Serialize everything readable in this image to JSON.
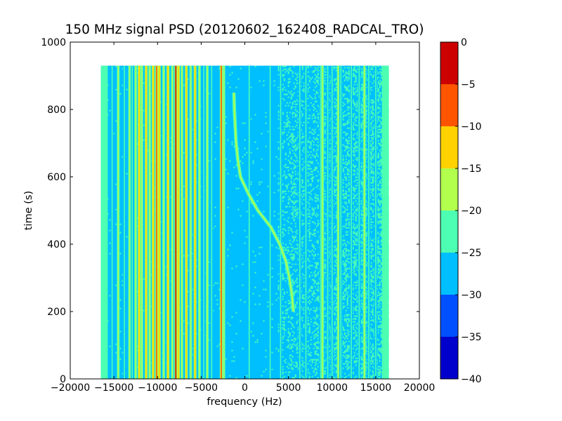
{
  "chart_data": {
    "type": "heatmap",
    "title": "150 MHz signal PSD (20120602_162408_RADCAL_TRO)",
    "xlabel": "frequency (Hz)",
    "ylabel": "time (s)",
    "xlim": [
      -20000,
      20000
    ],
    "ylim": [
      0,
      1000
    ],
    "x_ticks": [
      -20000,
      -15000,
      -10000,
      -5000,
      0,
      5000,
      10000,
      15000,
      20000
    ],
    "x_tick_labels": [
      "−20000",
      "−15000",
      "−10000",
      "−5000",
      "0",
      "5000",
      "10000",
      "15000",
      "20000"
    ],
    "y_ticks": [
      0,
      200,
      400,
      600,
      800,
      1000
    ],
    "y_tick_labels": [
      "0",
      "200",
      "400",
      "600",
      "800",
      "1000"
    ],
    "data_extent": {
      "freq_min": -16500,
      "freq_max": 16500,
      "time_min": 0,
      "time_max": 930
    },
    "background_level": -27.5,
    "noise_region": {
      "freq_from": 3800,
      "freq_to": 16500,
      "level": -22.5,
      "density": 0.32
    },
    "edge_bands": [
      {
        "freq_from": -16500,
        "freq_to": -15700,
        "level": -22.5
      },
      {
        "freq_from": 15700,
        "freq_to": 16500,
        "level": -22.5
      }
    ],
    "lines": [
      {
        "freq": -15200,
        "level": -22.5
      },
      {
        "freq": -14500,
        "level": -17.5
      },
      {
        "freq": -13800,
        "level": -22.5
      },
      {
        "freq": -13200,
        "level": -17.5
      },
      {
        "freq": -12900,
        "level": -22.5
      },
      {
        "freq": -12500,
        "level": -17.5
      },
      {
        "freq": -12100,
        "level": -12.5
      },
      {
        "freq": -11800,
        "level": -17.5
      },
      {
        "freq": -11300,
        "level": -12.5
      },
      {
        "freq": -10900,
        "level": -17.5
      },
      {
        "freq": -10500,
        "level": -12.5
      },
      {
        "freq": -10100,
        "level": -7.5
      },
      {
        "freq": -9800,
        "level": -12.5
      },
      {
        "freq": -9300,
        "level": -17.5
      },
      {
        "freq": -8800,
        "level": -12.5
      },
      {
        "freq": -8300,
        "level": -17.5
      },
      {
        "freq": -7900,
        "level": -2.5
      },
      {
        "freq": -7600,
        "level": -12.5
      },
      {
        "freq": -7200,
        "level": -17.5
      },
      {
        "freq": -6700,
        "level": -12.5
      },
      {
        "freq": -6200,
        "level": -17.5
      },
      {
        "freq": -5700,
        "level": -12.5
      },
      {
        "freq": -5200,
        "level": -17.5
      },
      {
        "freq": -4700,
        "level": -22.5
      },
      {
        "freq": -4300,
        "level": -17.5
      },
      {
        "freq": -3800,
        "level": -22.5
      },
      {
        "freq": -2700,
        "level": -7.5
      },
      {
        "freq": -2400,
        "level": -17.5
      },
      {
        "freq": 500,
        "level": -22.5
      },
      {
        "freq": 2900,
        "level": -22.5
      },
      {
        "freq": 4100,
        "level": -22.5
      },
      {
        "freq": 6300,
        "level": -22.5
      },
      {
        "freq": 7000,
        "level": -22.5
      },
      {
        "freq": 8700,
        "level": -22.5
      },
      {
        "freq": 8900,
        "level": -17.5
      },
      {
        "freq": 9500,
        "level": -22.5
      },
      {
        "freq": 10000,
        "level": -22.5
      },
      {
        "freq": 10700,
        "level": -17.5
      },
      {
        "freq": 11000,
        "level": -22.5
      },
      {
        "freq": 12200,
        "level": -22.5
      },
      {
        "freq": 13100,
        "level": -22.5
      },
      {
        "freq": 13700,
        "level": -17.5
      },
      {
        "freq": 14200,
        "level": -22.5
      },
      {
        "freq": 15000,
        "level": -22.5
      }
    ],
    "drifting_signal": {
      "level": -17.5,
      "points": [
        {
          "t": 200,
          "f": 5550
        },
        {
          "t": 250,
          "f": 5400
        },
        {
          "t": 300,
          "f": 5100
        },
        {
          "t": 350,
          "f": 4700
        },
        {
          "t": 400,
          "f": 4000
        },
        {
          "t": 450,
          "f": 3000
        },
        {
          "t": 500,
          "f": 1500
        },
        {
          "t": 550,
          "f": 400
        },
        {
          "t": 600,
          "f": -500
        },
        {
          "t": 650,
          "f": -800
        },
        {
          "t": 700,
          "f": -1000
        },
        {
          "t": 800,
          "f": -1200
        },
        {
          "t": 850,
          "f": -1250
        }
      ]
    },
    "colorbar": {
      "min": -40,
      "max": 0,
      "ticks": [
        0,
        -5,
        -10,
        -15,
        -20,
        -25,
        -30,
        -35,
        -40
      ],
      "tick_labels": [
        "0",
        "−5",
        "−10",
        "−15",
        "−20",
        "−25",
        "−30",
        "−35",
        "−40"
      ],
      "levels": [
        {
          "from": -40,
          "to": -35,
          "color": "#0000cd"
        },
        {
          "from": -35,
          "to": -30,
          "color": "#0050ff"
        },
        {
          "from": -30,
          "to": -25,
          "color": "#00bfff"
        },
        {
          "from": -25,
          "to": -20,
          "color": "#4dffb2"
        },
        {
          "from": -20,
          "to": -15,
          "color": "#b2ff4d"
        },
        {
          "from": -15,
          "to": -10,
          "color": "#ffd200"
        },
        {
          "from": -10,
          "to": -5,
          "color": "#ff5500"
        },
        {
          "from": -5,
          "to": 0,
          "color": "#cd0000"
        }
      ]
    }
  }
}
